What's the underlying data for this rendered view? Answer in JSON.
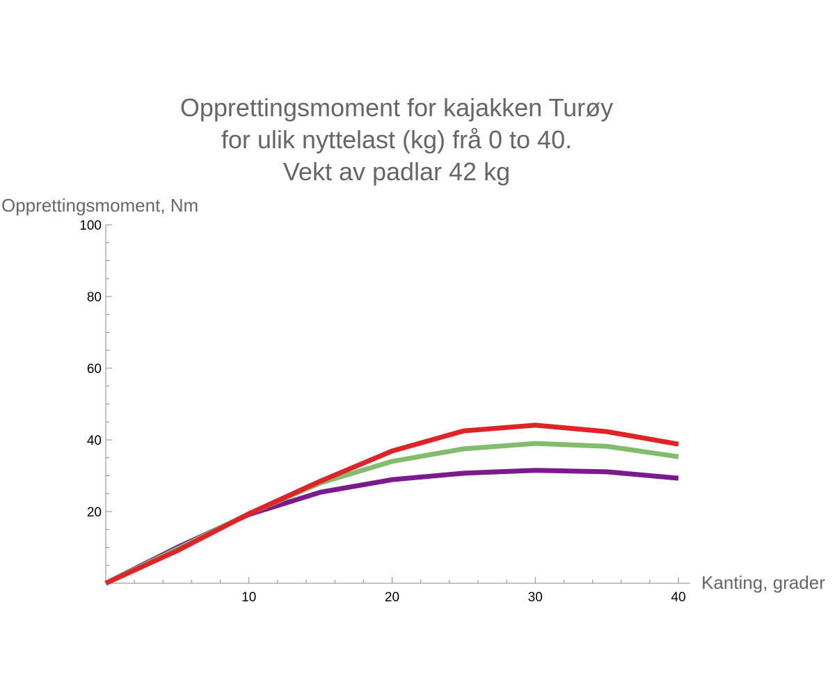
{
  "chart_data": {
    "type": "line",
    "title_lines": [
      "Opprettingsmoment for kajakken Turøy",
      "for ulik nyttelast (kg) frå 0 to 40.",
      "Vekt av padlar 42 kg"
    ],
    "xlabel": "Kanting, grader",
    "ylabel": "Opprettingsmoment, Nm",
    "xlim": [
      0,
      40
    ],
    "ylim": [
      0,
      100
    ],
    "xticks": [
      10,
      20,
      30,
      40
    ],
    "yticks": [
      20,
      40,
      60,
      80,
      100
    ],
    "grid": false,
    "x": [
      0,
      5,
      10,
      15,
      20,
      25,
      30,
      35,
      40
    ],
    "series": [
      {
        "color": "#7b1a8c",
        "values": [
          0,
          10,
          19.2,
          25.4,
          28.9,
          30.7,
          31.5,
          31.1,
          29.3
        ]
      },
      {
        "color": "#82bd6e",
        "values": [
          0,
          9.6,
          19.4,
          28,
          34,
          37.5,
          39,
          38.2,
          35.3
        ]
      },
      {
        "color": "#de2426",
        "values": [
          0,
          9.1,
          19.4,
          28.5,
          36.9,
          42.5,
          44.1,
          42.3,
          38.8
        ]
      }
    ]
  }
}
